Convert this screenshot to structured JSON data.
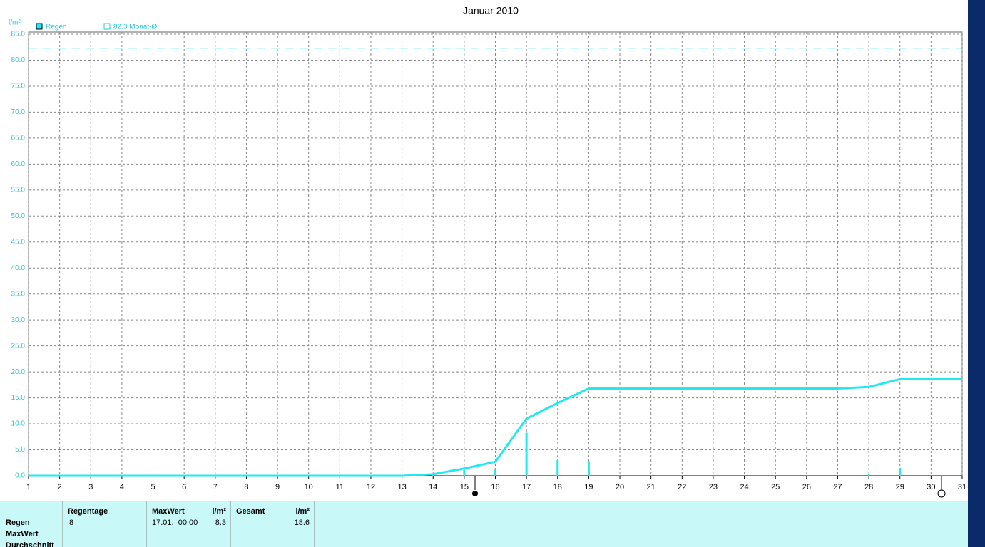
{
  "chart_data": {
    "type": "rain",
    "title": "Januar 2010",
    "y_label": "l/m²",
    "x": [
      1,
      2,
      3,
      4,
      5,
      6,
      7,
      8,
      9,
      10,
      11,
      12,
      13,
      14,
      15,
      16,
      17,
      18,
      19,
      20,
      21,
      22,
      23,
      24,
      25,
      26,
      27,
      28,
      29,
      30,
      31
    ],
    "series": [
      {
        "name": "Regen",
        "color": "#22e8f0",
        "line": [
          0,
          0,
          0,
          0,
          0,
          0,
          0,
          0,
          0,
          0,
          0,
          0,
          0,
          0.3,
          1.4,
          2.7,
          11.0,
          14.0,
          16.8,
          16.8,
          16.8,
          16.8,
          16.8,
          16.8,
          16.8,
          16.8,
          16.8,
          17.1,
          18.6,
          18.6,
          18.6
        ],
        "bars": [
          0,
          0,
          0,
          0,
          0,
          0,
          0,
          0,
          0,
          0,
          0,
          0,
          0,
          0.3,
          1.1,
          1.3,
          8.3,
          3.0,
          2.8,
          0,
          0,
          0,
          0,
          0,
          0,
          0,
          0,
          0.3,
          1.5,
          0,
          0
        ]
      }
    ],
    "reference": {
      "name": "82.3 Monat-Ø",
      "value": 82.3,
      "color": "#22e8f0"
    },
    "xlim": [
      1,
      31
    ],
    "xticks": [
      1,
      2,
      3,
      4,
      5,
      6,
      7,
      8,
      9,
      10,
      11,
      12,
      13,
      14,
      15,
      16,
      17,
      18,
      19,
      20,
      21,
      22,
      23,
      24,
      25,
      26,
      27,
      28,
      29,
      30,
      31
    ],
    "ylim": [
      0,
      85
    ],
    "yticks": [
      {
        "value": 0,
        "label": "0.0"
      },
      {
        "value": 5,
        "label": "5.0"
      },
      {
        "value": 10,
        "label": "10.0"
      },
      {
        "value": 15,
        "label": "15.0"
      },
      {
        "value": 20,
        "label": "20.0"
      },
      {
        "value": 25,
        "label": "25.0"
      },
      {
        "value": 30,
        "label": "30.0"
      },
      {
        "value": 35,
        "label": "35.0"
      },
      {
        "value": 40,
        "label": "40.0"
      },
      {
        "value": 45,
        "label": "45.0"
      },
      {
        "value": 50,
        "label": "50.0"
      },
      {
        "value": 55,
        "label": "55.0"
      },
      {
        "value": 60,
        "label": "60.0"
      },
      {
        "value": 65,
        "label": "65.0"
      },
      {
        "value": 70,
        "label": "70.0"
      },
      {
        "value": 75,
        "label": "75.0"
      },
      {
        "value": 80,
        "label": "80.0"
      },
      {
        "value": 85,
        "label": "85.0"
      }
    ],
    "grid": true
  },
  "table": {
    "headers": [
      "Regentage",
      "MaxWert",
      "l/m²",
      "Gesamt",
      "l/m²"
    ],
    "row_labels": [
      "Regen",
      "MaxWert",
      "Durchschnitt"
    ],
    "rain_days": "8",
    "max_date": "17.01.  00:00",
    "max": "8.3",
    "total": "18.6"
  }
}
